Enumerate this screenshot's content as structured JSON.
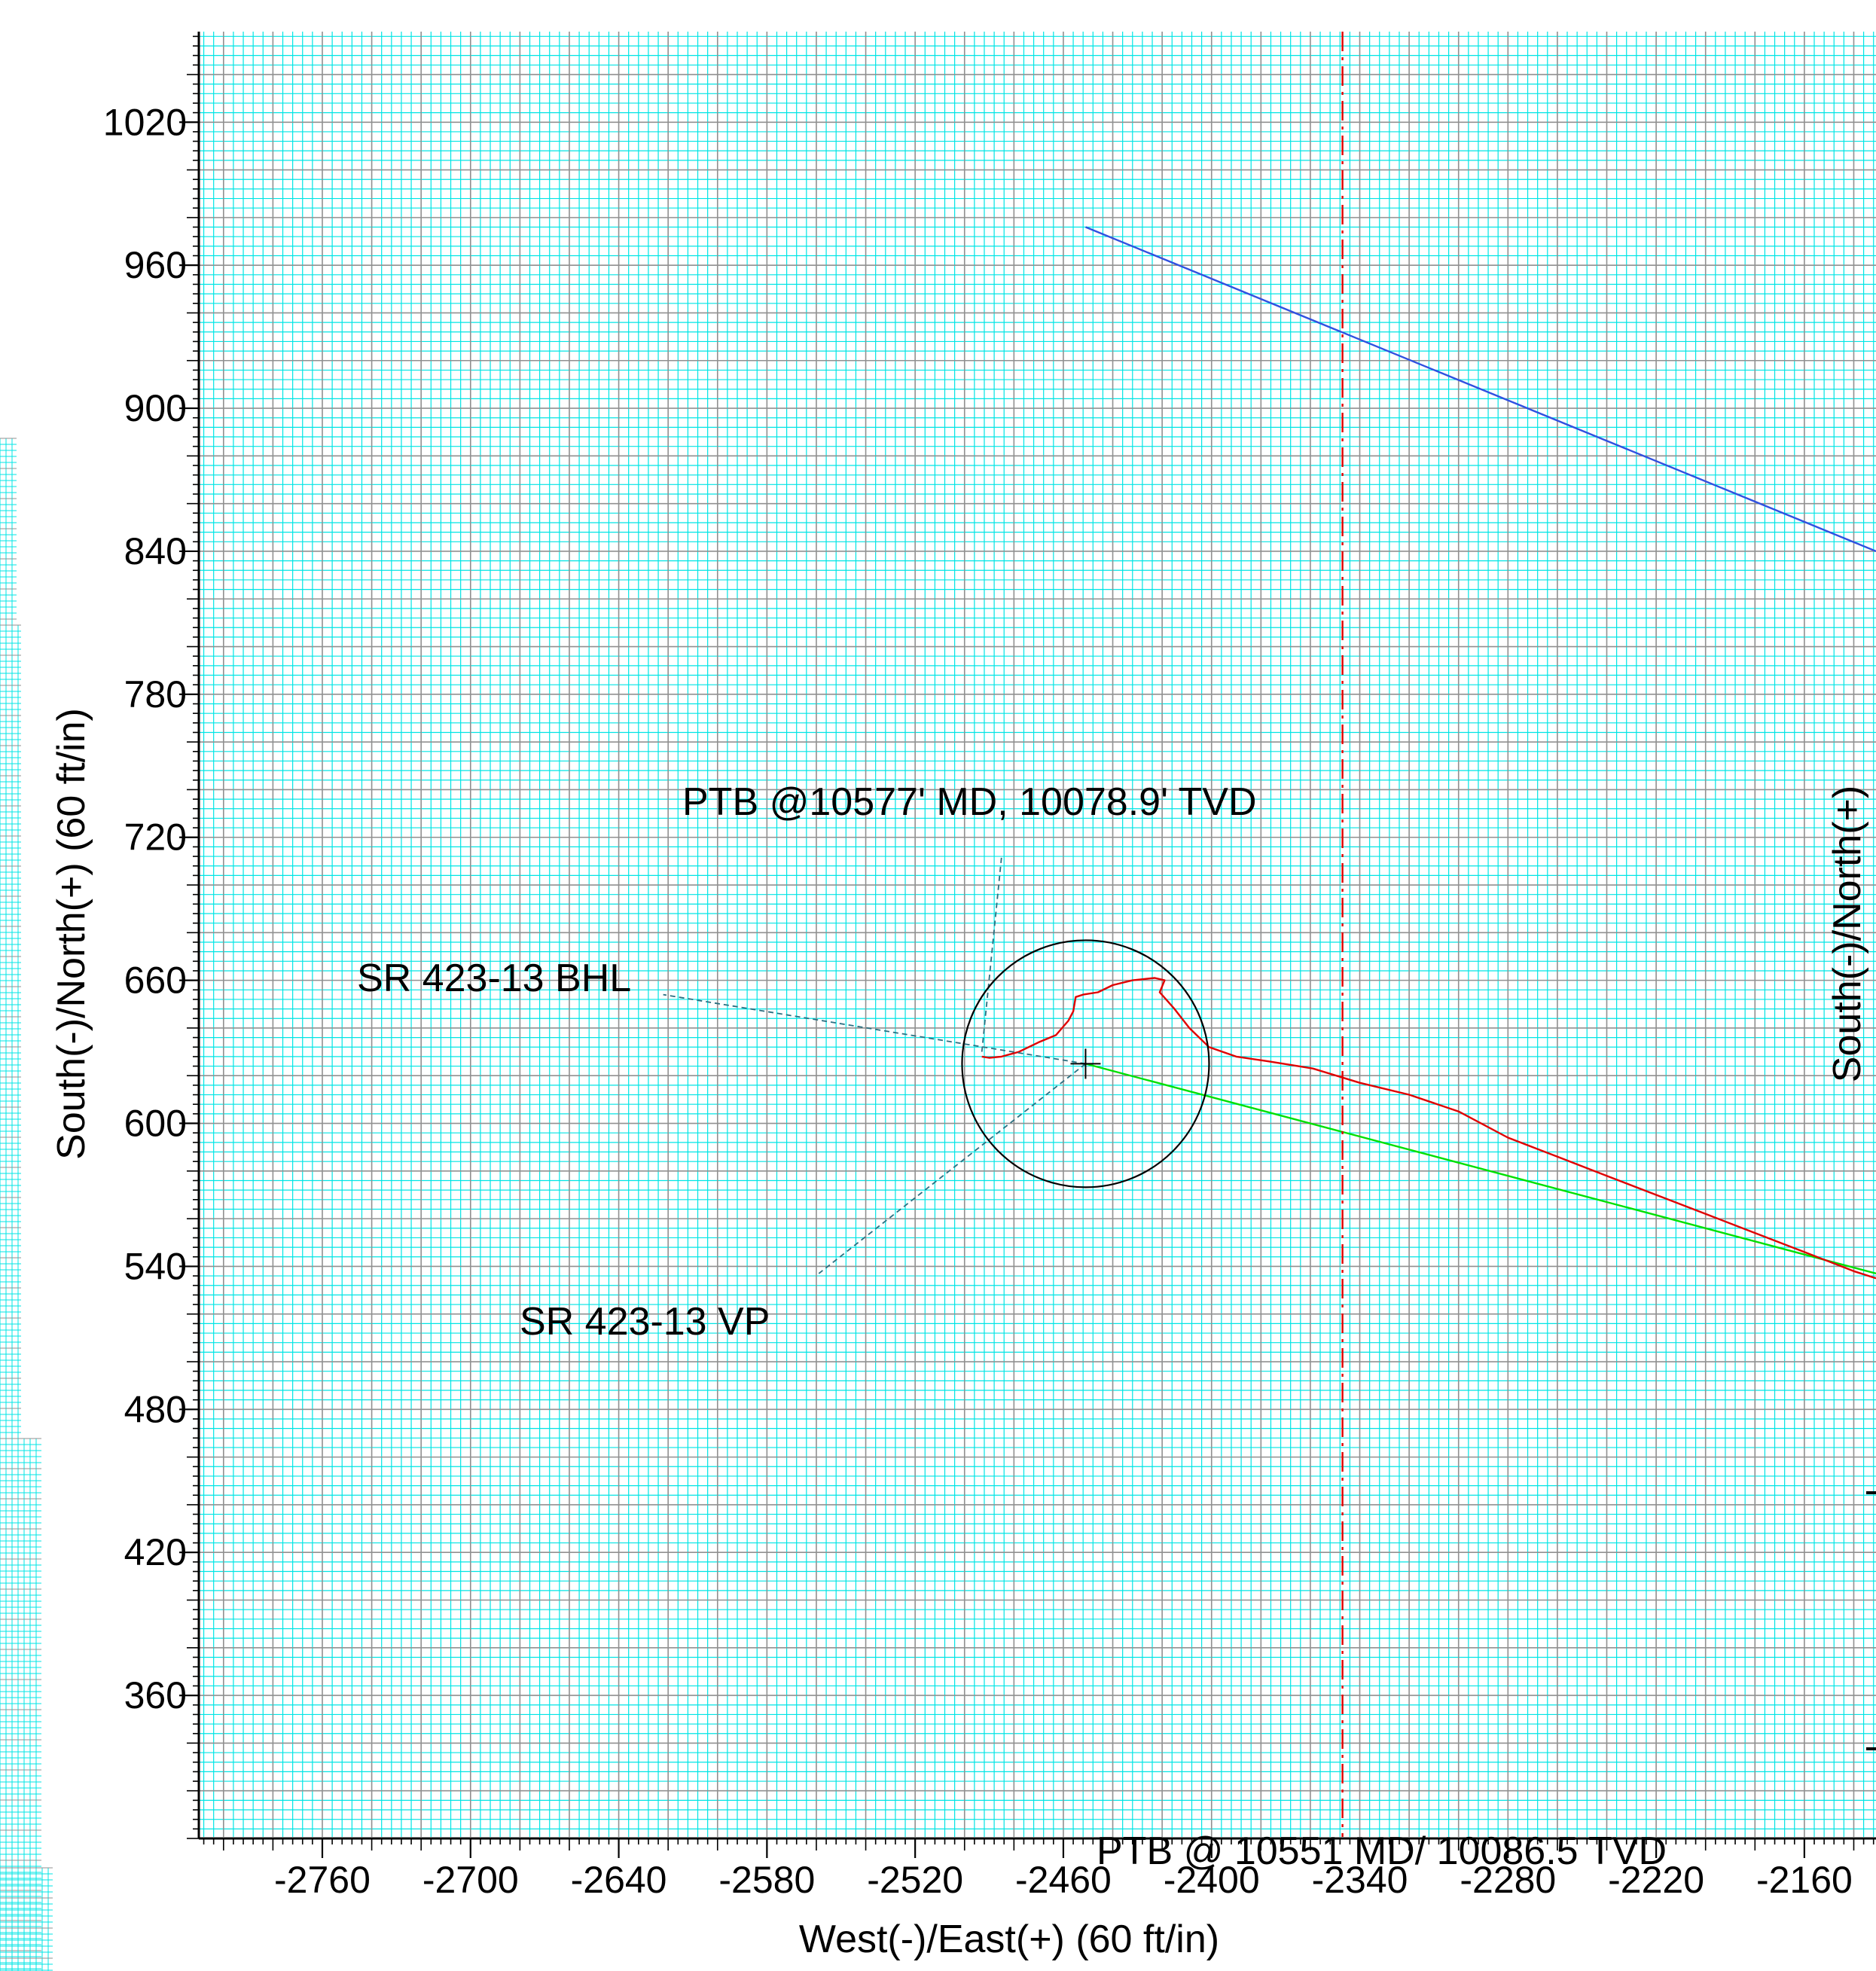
{
  "chart_data": {
    "type": "line",
    "xlabel": "West(-)/East(+) (60 ft/in)",
    "ylabel": "South(-)/North(+) (60 ft/in)",
    "right_ylabel": "South(-)/North(+)",
    "xlim": [
      -2810,
      -2131
    ],
    "ylim": [
      300,
      1058
    ],
    "x_ticks": [
      -2760,
      -2700,
      -2640,
      -2580,
      -2520,
      -2460,
      -2400,
      -2340,
      -2280,
      -2220,
      -2160
    ],
    "x_tick_labels": [
      "-2760",
      "-2700",
      "-2640",
      "-2580",
      "-2520",
      "-2460",
      "-2400",
      "-2340",
      "-2280",
      "-2220",
      "-2160"
    ],
    "y_ticks": [
      1020,
      960,
      900,
      840,
      780,
      720,
      660,
      600,
      540,
      480,
      420,
      360
    ],
    "y_tick_labels": [
      "1020",
      "960",
      "900",
      "840",
      "780",
      "720",
      "660",
      "600",
      "540",
      "480",
      "420",
      "360"
    ],
    "grid": true,
    "grid_colors": {
      "major": "#909090",
      "minor": "#00e5e5"
    },
    "series": [
      {
        "color": "#3050e0",
        "points": [
          [
            -2451,
            976
          ],
          [
            -2131,
            840
          ]
        ]
      },
      {
        "color": "#00e000",
        "points": [
          [
            -2451,
            625
          ],
          [
            -2131,
            537
          ]
        ]
      },
      {
        "color": "#e00000",
        "points": [
          [
            -2493,
            628
          ],
          [
            -2490,
            627.5
          ],
          [
            -2485,
            628
          ],
          [
            -2478,
            630
          ],
          [
            -2470,
            634
          ],
          [
            -2463,
            637
          ],
          [
            -2458,
            643
          ],
          [
            -2456,
            647
          ],
          [
            -2455,
            653
          ],
          [
            -2452,
            654
          ],
          [
            -2446,
            655
          ],
          [
            -2440,
            658
          ],
          [
            -2432,
            660
          ],
          [
            -2423,
            661
          ],
          [
            -2419,
            660
          ],
          [
            -2421,
            655
          ],
          [
            -2415,
            648
          ],
          [
            -2409,
            640
          ],
          [
            -2401,
            632
          ],
          [
            -2390,
            628
          ],
          [
            -2377,
            626
          ],
          [
            -2359,
            623
          ],
          [
            -2340,
            617
          ],
          [
            -2320,
            612
          ],
          [
            -2300,
            605
          ],
          [
            -2280,
            594
          ],
          [
            -2260,
            586
          ],
          [
            -2240,
            578
          ],
          [
            -2220,
            570
          ],
          [
            -2200,
            562
          ],
          [
            -2180,
            554
          ],
          [
            -2160,
            546
          ],
          [
            -2140,
            538
          ],
          [
            -2131,
            535
          ]
        ]
      },
      {
        "color": "#e00000",
        "style": "dash-dot",
        "points": [
          [
            -2347,
            1058
          ],
          [
            -2347,
            300
          ]
        ]
      }
    ],
    "target_circle": {
      "center": [
        -2451,
        625
      ],
      "radius": 50
    },
    "annotations": [
      {
        "text": "PTB @10577' MD, 10078.9' TVD",
        "anchor": [
          -2493,
          630
        ],
        "leader": [
          [
            -2493,
            630
          ],
          [
            -2485,
            712
          ]
        ]
      },
      {
        "text": "SR 423-13 BHL",
        "anchor": [
          -2451,
          625
        ],
        "leader": [
          [
            -2451,
            625
          ],
          [
            -2622,
            654
          ]
        ]
      },
      {
        "text": "SR 423-13 VP",
        "anchor": [
          -2451,
          625
        ],
        "leader": [
          [
            -2451,
            625
          ],
          [
            -2559,
            537
          ]
        ]
      },
      {
        "text": "PTB @ 10551 MD/ 10086.5 TVD",
        "anchor": [
          -2425,
          300
        ],
        "leader": [
          [
            -2425,
            300
          ],
          [
            -2425,
            300
          ]
        ]
      }
    ]
  }
}
